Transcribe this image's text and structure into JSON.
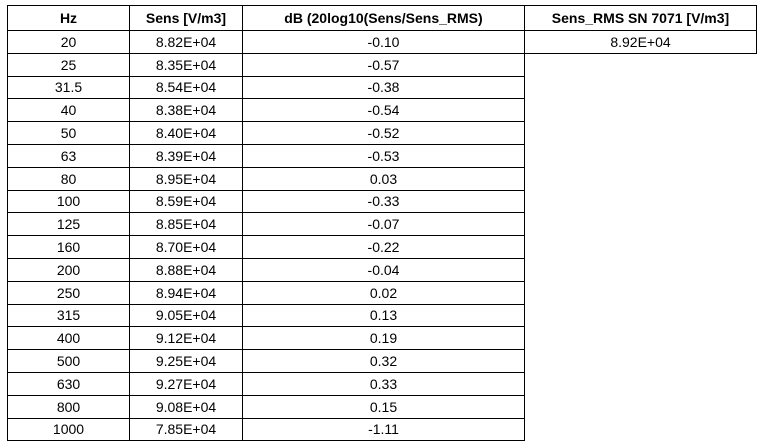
{
  "table": {
    "header": [
      "Hz",
      "Sens [V/m3]",
      "dB (20log10(Sens/Sens_RMS)",
      "Sens_RMS SN 7071 [V/m3]"
    ],
    "rows": [
      [
        "20",
        "8.82E+04",
        "-0.10",
        "8.92E+04"
      ],
      [
        "25",
        "8.35E+04",
        "-0.57"
      ],
      [
        "31.5",
        "8.54E+04",
        "-0.38"
      ],
      [
        "40",
        "8.38E+04",
        "-0.54"
      ],
      [
        "50",
        "8.40E+04",
        "-0.52"
      ],
      [
        "63",
        "8.39E+04",
        "-0.53"
      ],
      [
        "80",
        "8.95E+04",
        "0.03"
      ],
      [
        "100",
        "8.59E+04",
        "-0.33"
      ],
      [
        "125",
        "8.85E+04",
        "-0.07"
      ],
      [
        "160",
        "8.70E+04",
        "-0.22"
      ],
      [
        "200",
        "8.88E+04",
        "-0.04"
      ],
      [
        "250",
        "8.94E+04",
        "0.02"
      ],
      [
        "315",
        "9.05E+04",
        "0.13"
      ],
      [
        "400",
        "9.12E+04",
        "0.19"
      ],
      [
        "500",
        "9.25E+04",
        "0.32"
      ],
      [
        "630",
        "9.27E+04",
        "0.33"
      ],
      [
        "800",
        "9.08E+04",
        "0.15"
      ],
      [
        "1000",
        "7.85E+04",
        "-1.11"
      ]
    ]
  }
}
